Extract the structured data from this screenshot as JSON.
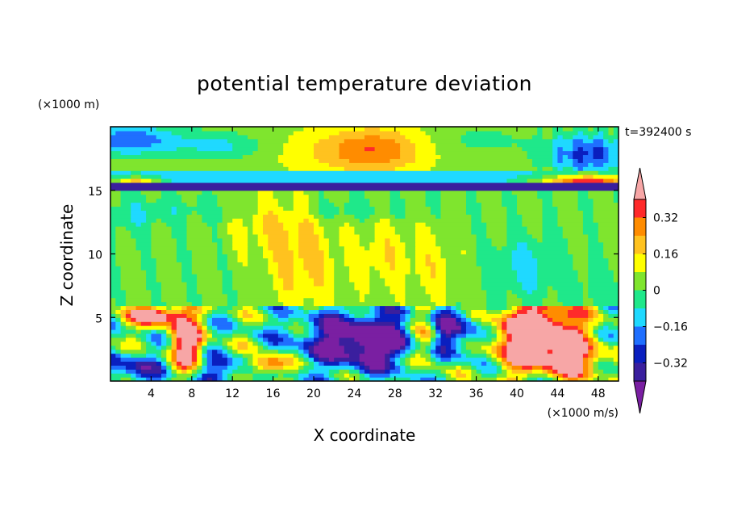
{
  "chart_data": {
    "type": "heatmap",
    "title": "potential temperature deviation",
    "xlabel": "X coordinate",
    "ylabel": "Z coordinate",
    "x_unit": "(×1000 m/s)",
    "y_unit": "(×1000 m)",
    "time_label": "t=392400 s",
    "xlim": [
      0,
      50
    ],
    "ylim": [
      0,
      20
    ],
    "x_ticks": [
      4,
      8,
      12,
      16,
      20,
      24,
      28,
      32,
      36,
      40,
      44,
      48
    ],
    "x_tick_labels": [
      "4",
      "8",
      "12",
      "16",
      "20",
      "24",
      "28",
      "32",
      "36",
      "40",
      "44",
      "48"
    ],
    "y_ticks": [
      5,
      10,
      15
    ],
    "y_tick_labels": [
      "5",
      "10",
      "15"
    ],
    "colorbar": {
      "levels": [
        -0.4,
        -0.32,
        -0.24,
        -0.16,
        -0.08,
        0,
        0.08,
        0.16,
        0.24,
        0.32,
        0.4
      ],
      "colors": [
        "#7a1fa2",
        "#3a1f9e",
        "#0a1fbf",
        "#1f6fff",
        "#1fd9ff",
        "#1fe88a",
        "#7fe52e",
        "#ffff00",
        "#ffc21f",
        "#ff8c00",
        "#ff2a2a",
        "#f7a6a6"
      ],
      "tick_values": [
        0.32,
        0.16,
        0,
        -0.16,
        -0.32
      ],
      "tick_labels": [
        "0.32",
        "0.16",
        "0",
        "−0.16",
        "−0.32"
      ]
    }
  }
}
